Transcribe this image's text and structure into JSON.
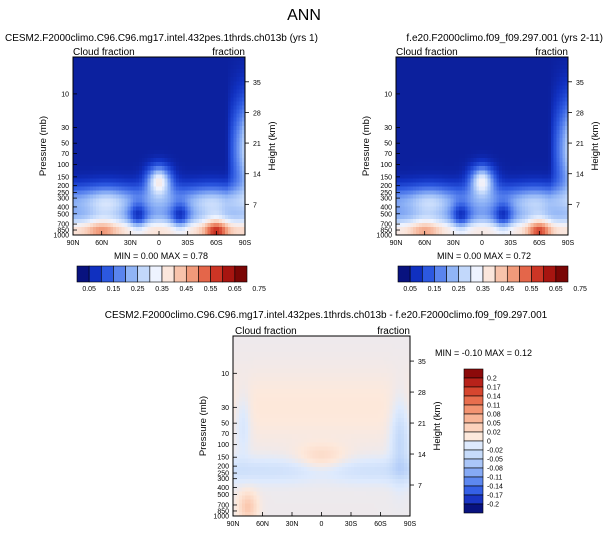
{
  "figure_title": "ANN",
  "panels": [
    {
      "title": "CESM2.F2000climo.C96.C96.mg17.intel.432pes.1thrds.ch013b (yrs 1)",
      "left_label": "Cloud fraction",
      "right_label": "fraction",
      "stats": "MIN =  0.00  MAX =  0.78"
    },
    {
      "title": "f.e20.F2000climo.f09_f09.297.001 (yrs 2-11)",
      "left_label": "Cloud fraction",
      "right_label": "fraction",
      "stats": "MIN =  0.00  MAX =  0.72"
    },
    {
      "title": "CESM2.F2000climo.C96.C96.mg17.intel.432pes.1thrds.ch013b - f.e20.F2000climo.f09_f09.297.001",
      "left_label": "Cloud fraction",
      "right_label": "fraction",
      "stats": "MIN = -0.10  MAX =  0.12"
    }
  ],
  "colors": {
    "abs_scale": [
      "#08127f",
      "#1030c0",
      "#2c58e0",
      "#5a84ee",
      "#90b4f6",
      "#c2d8fb",
      "#eef3ff",
      "#fbe6dc",
      "#f8c3ab",
      "#f19a7a",
      "#e4664a",
      "#cc3525",
      "#a71510",
      "#7a0605"
    ],
    "diff_scale": [
      "#08127f",
      "#1a35c4",
      "#3560e6",
      "#5d88f0",
      "#86aaf5",
      "#aac6f8",
      "#c6dbfa",
      "#deeafd",
      "#fde9dc",
      "#fcd2bc",
      "#f8b597",
      "#f39472",
      "#e86e4e",
      "#d6462f",
      "#b8221a",
      "#8c0a0a"
    ]
  },
  "chart_data": [
    {
      "type": "heatmap",
      "title": "CESM2.F2000climo.C96.C96.mg17.intel.432pes.1thrds.ch013b (yrs 1)",
      "xlabel": "",
      "ylabel": "Pressure (mb)",
      "ylabel_right": "Height (km)",
      "x_ticks": [
        "90N",
        "60N",
        "30N",
        "0",
        "30S",
        "60S",
        "90S"
      ],
      "y_ticks": [
        "10",
        "30",
        "50",
        "70",
        "100",
        "150",
        "200",
        "250",
        "300",
        "400",
        "500",
        "700",
        "850",
        "1000"
      ],
      "y_right_ticks": [
        "35",
        "28",
        "21",
        "14",
        "7"
      ],
      "y_scale": "log",
      "x_range": [
        "90N",
        "90S"
      ],
      "y_range": [
        1000,
        3
      ],
      "min": 0.0,
      "max": 0.78,
      "colorbar_labels": [
        "0.05",
        "0.15",
        "0.25",
        "0.35",
        "0.45",
        "0.55",
        "0.65",
        "0.75"
      ]
    },
    {
      "type": "heatmap",
      "title": "f.e20.F2000climo.f09_f09.297.001 (yrs 2-11)",
      "xlabel": "",
      "ylabel": "Pressure (mb)",
      "ylabel_right": "Height (km)",
      "x_ticks": [
        "90N",
        "60N",
        "30N",
        "0",
        "30S",
        "60S",
        "90S"
      ],
      "y_ticks": [
        "10",
        "30",
        "50",
        "70",
        "100",
        "150",
        "200",
        "250",
        "300",
        "400",
        "500",
        "700",
        "850",
        "1000"
      ],
      "y_right_ticks": [
        "35",
        "28",
        "21",
        "14",
        "7"
      ],
      "y_scale": "log",
      "x_range": [
        "90N",
        "90S"
      ],
      "y_range": [
        1000,
        3
      ],
      "min": 0.0,
      "max": 0.72,
      "colorbar_labels": [
        "0.05",
        "0.15",
        "0.25",
        "0.35",
        "0.45",
        "0.55",
        "0.65",
        "0.75"
      ]
    },
    {
      "type": "heatmap",
      "title": "CESM2.F2000climo.C96.C96.mg17.intel.432pes.1thrds.ch013b - f.e20.F2000climo.f09_f09.297.001",
      "xlabel": "",
      "ylabel": "Pressure (mb)",
      "ylabel_right": "Height (km)",
      "x_ticks": [
        "90N",
        "60N",
        "30N",
        "0",
        "30S",
        "60S",
        "90S"
      ],
      "y_ticks": [
        "10",
        "30",
        "50",
        "70",
        "100",
        "150",
        "200",
        "250",
        "300",
        "400",
        "500",
        "700",
        "850",
        "1000"
      ],
      "y_right_ticks": [
        "35",
        "28",
        "21",
        "14",
        "7"
      ],
      "y_scale": "log",
      "x_range": [
        "90N",
        "90S"
      ],
      "y_range": [
        1000,
        3
      ],
      "min": -0.1,
      "max": 0.12,
      "colorbar_labels": [
        "0.2",
        "0.17",
        "0.14",
        "0.11",
        "0.08",
        "0.05",
        "0.02",
        "0",
        "-0.02",
        "-0.05",
        "-0.08",
        "-0.11",
        "-0.14",
        "-0.17",
        "-0.2"
      ]
    }
  ]
}
